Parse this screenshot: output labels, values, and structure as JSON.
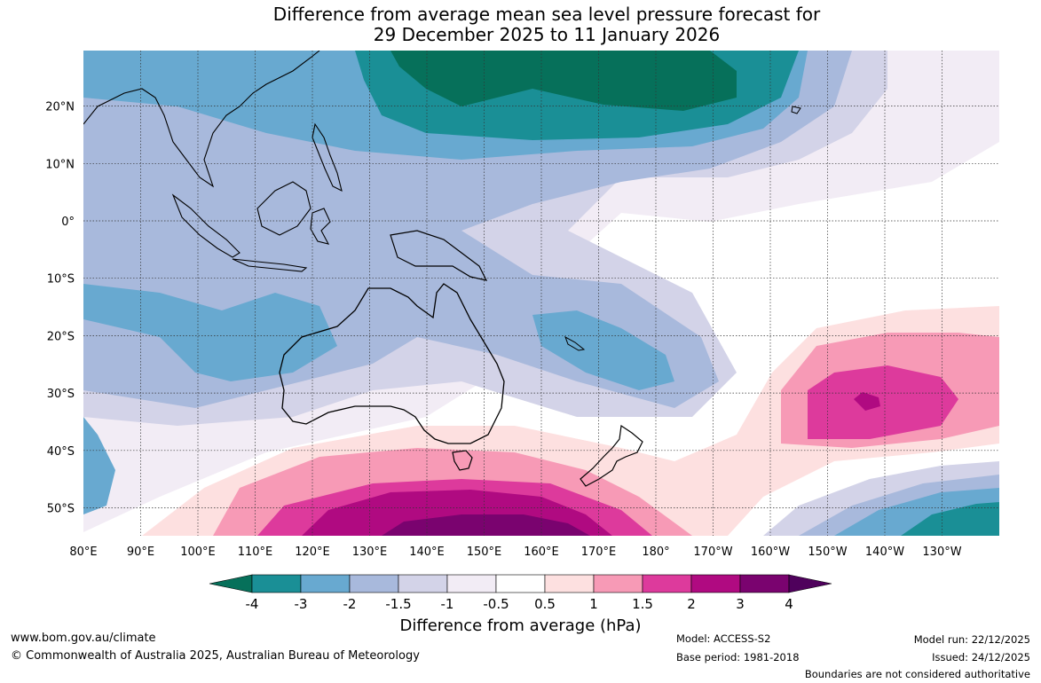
{
  "title": {
    "line1": "Difference from average mean sea level pressure forecast for",
    "line2": "29 December 2025 to 11 January 2026"
  },
  "map": {
    "lat_labels": [
      "20°N",
      "10°N",
      "0°",
      "10°S",
      "20°S",
      "30°S",
      "40°S",
      "50°S"
    ],
    "lon_labels": [
      "80°E",
      "90°E",
      "100°E",
      "110°E",
      "120°E",
      "130°E",
      "140°E",
      "150°E",
      "160°E",
      "170°E",
      "180°",
      "170°W",
      "160°W",
      "150°W",
      "140°W",
      "130°W"
    ],
    "region": "Australia and surrounding oceans"
  },
  "legend": {
    "title": "Difference from average (hPa)",
    "tick_labels": [
      "-4",
      "-3",
      "-2",
      "-1.5",
      "-1",
      "-0.5",
      "0.5",
      "1",
      "1.5",
      "2",
      "3",
      "4"
    ],
    "colors": [
      "#06705a",
      "#1a8f96",
      "#68a9d0",
      "#a8b9dc",
      "#d3d3e8",
      "#f2ecf5",
      "#ffffff",
      "#fde0e0",
      "#f79ab6",
      "#dd3a9c",
      "#b00a81",
      "#7a036f",
      "#4f015c"
    ],
    "extend": "both"
  },
  "footer": {
    "website": "www.bom.gov.au/climate",
    "copyright": "© Commonwealth of Australia 2025, Australian Bureau of Meteorology",
    "model": "Model: ACCESS-S2",
    "base_period": "Base period: 1981-2018",
    "model_run": "Model run: 22/12/2025",
    "issued": "Issued: 24/12/2025",
    "disclaimer": "Boundaries are not considered authoritative"
  }
}
